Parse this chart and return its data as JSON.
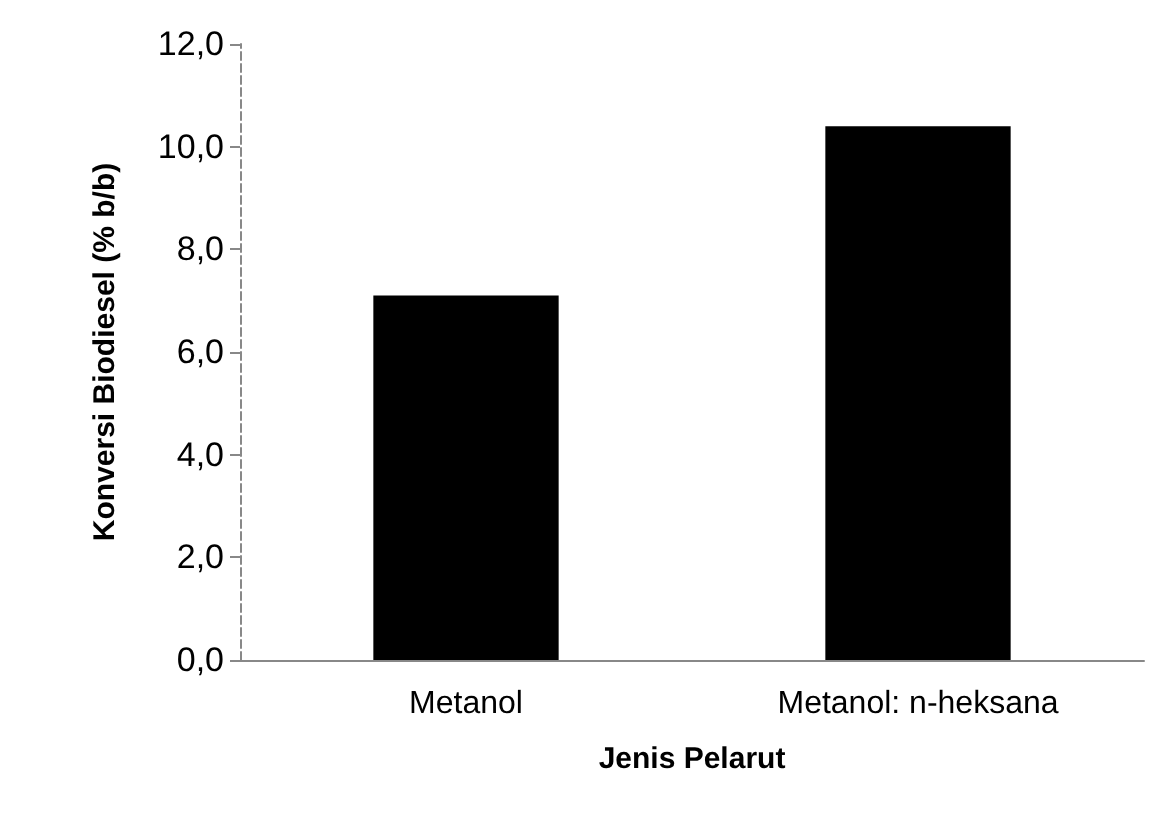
{
  "chart_data": {
    "type": "bar",
    "xlabel": "Jenis Pelarut",
    "ylabel": "Konversi Biodiesel (% b/b)",
    "categories": [
      "Metanol",
      "Metanol: n-heksana"
    ],
    "values": [
      7.1,
      10.4
    ],
    "color": "#000000",
    "ylim": [
      0,
      12
    ],
    "yticks": [
      {
        "value": 0,
        "label": "0,0"
      },
      {
        "value": 2,
        "label": "2,0"
      },
      {
        "value": 4,
        "label": "4,0"
      },
      {
        "value": 6,
        "label": "6,0"
      },
      {
        "value": 8,
        "label": "8,0"
      },
      {
        "value": 10,
        "label": "10,0"
      },
      {
        "value": 12,
        "label": "12,0"
      }
    ],
    "grid": false
  }
}
